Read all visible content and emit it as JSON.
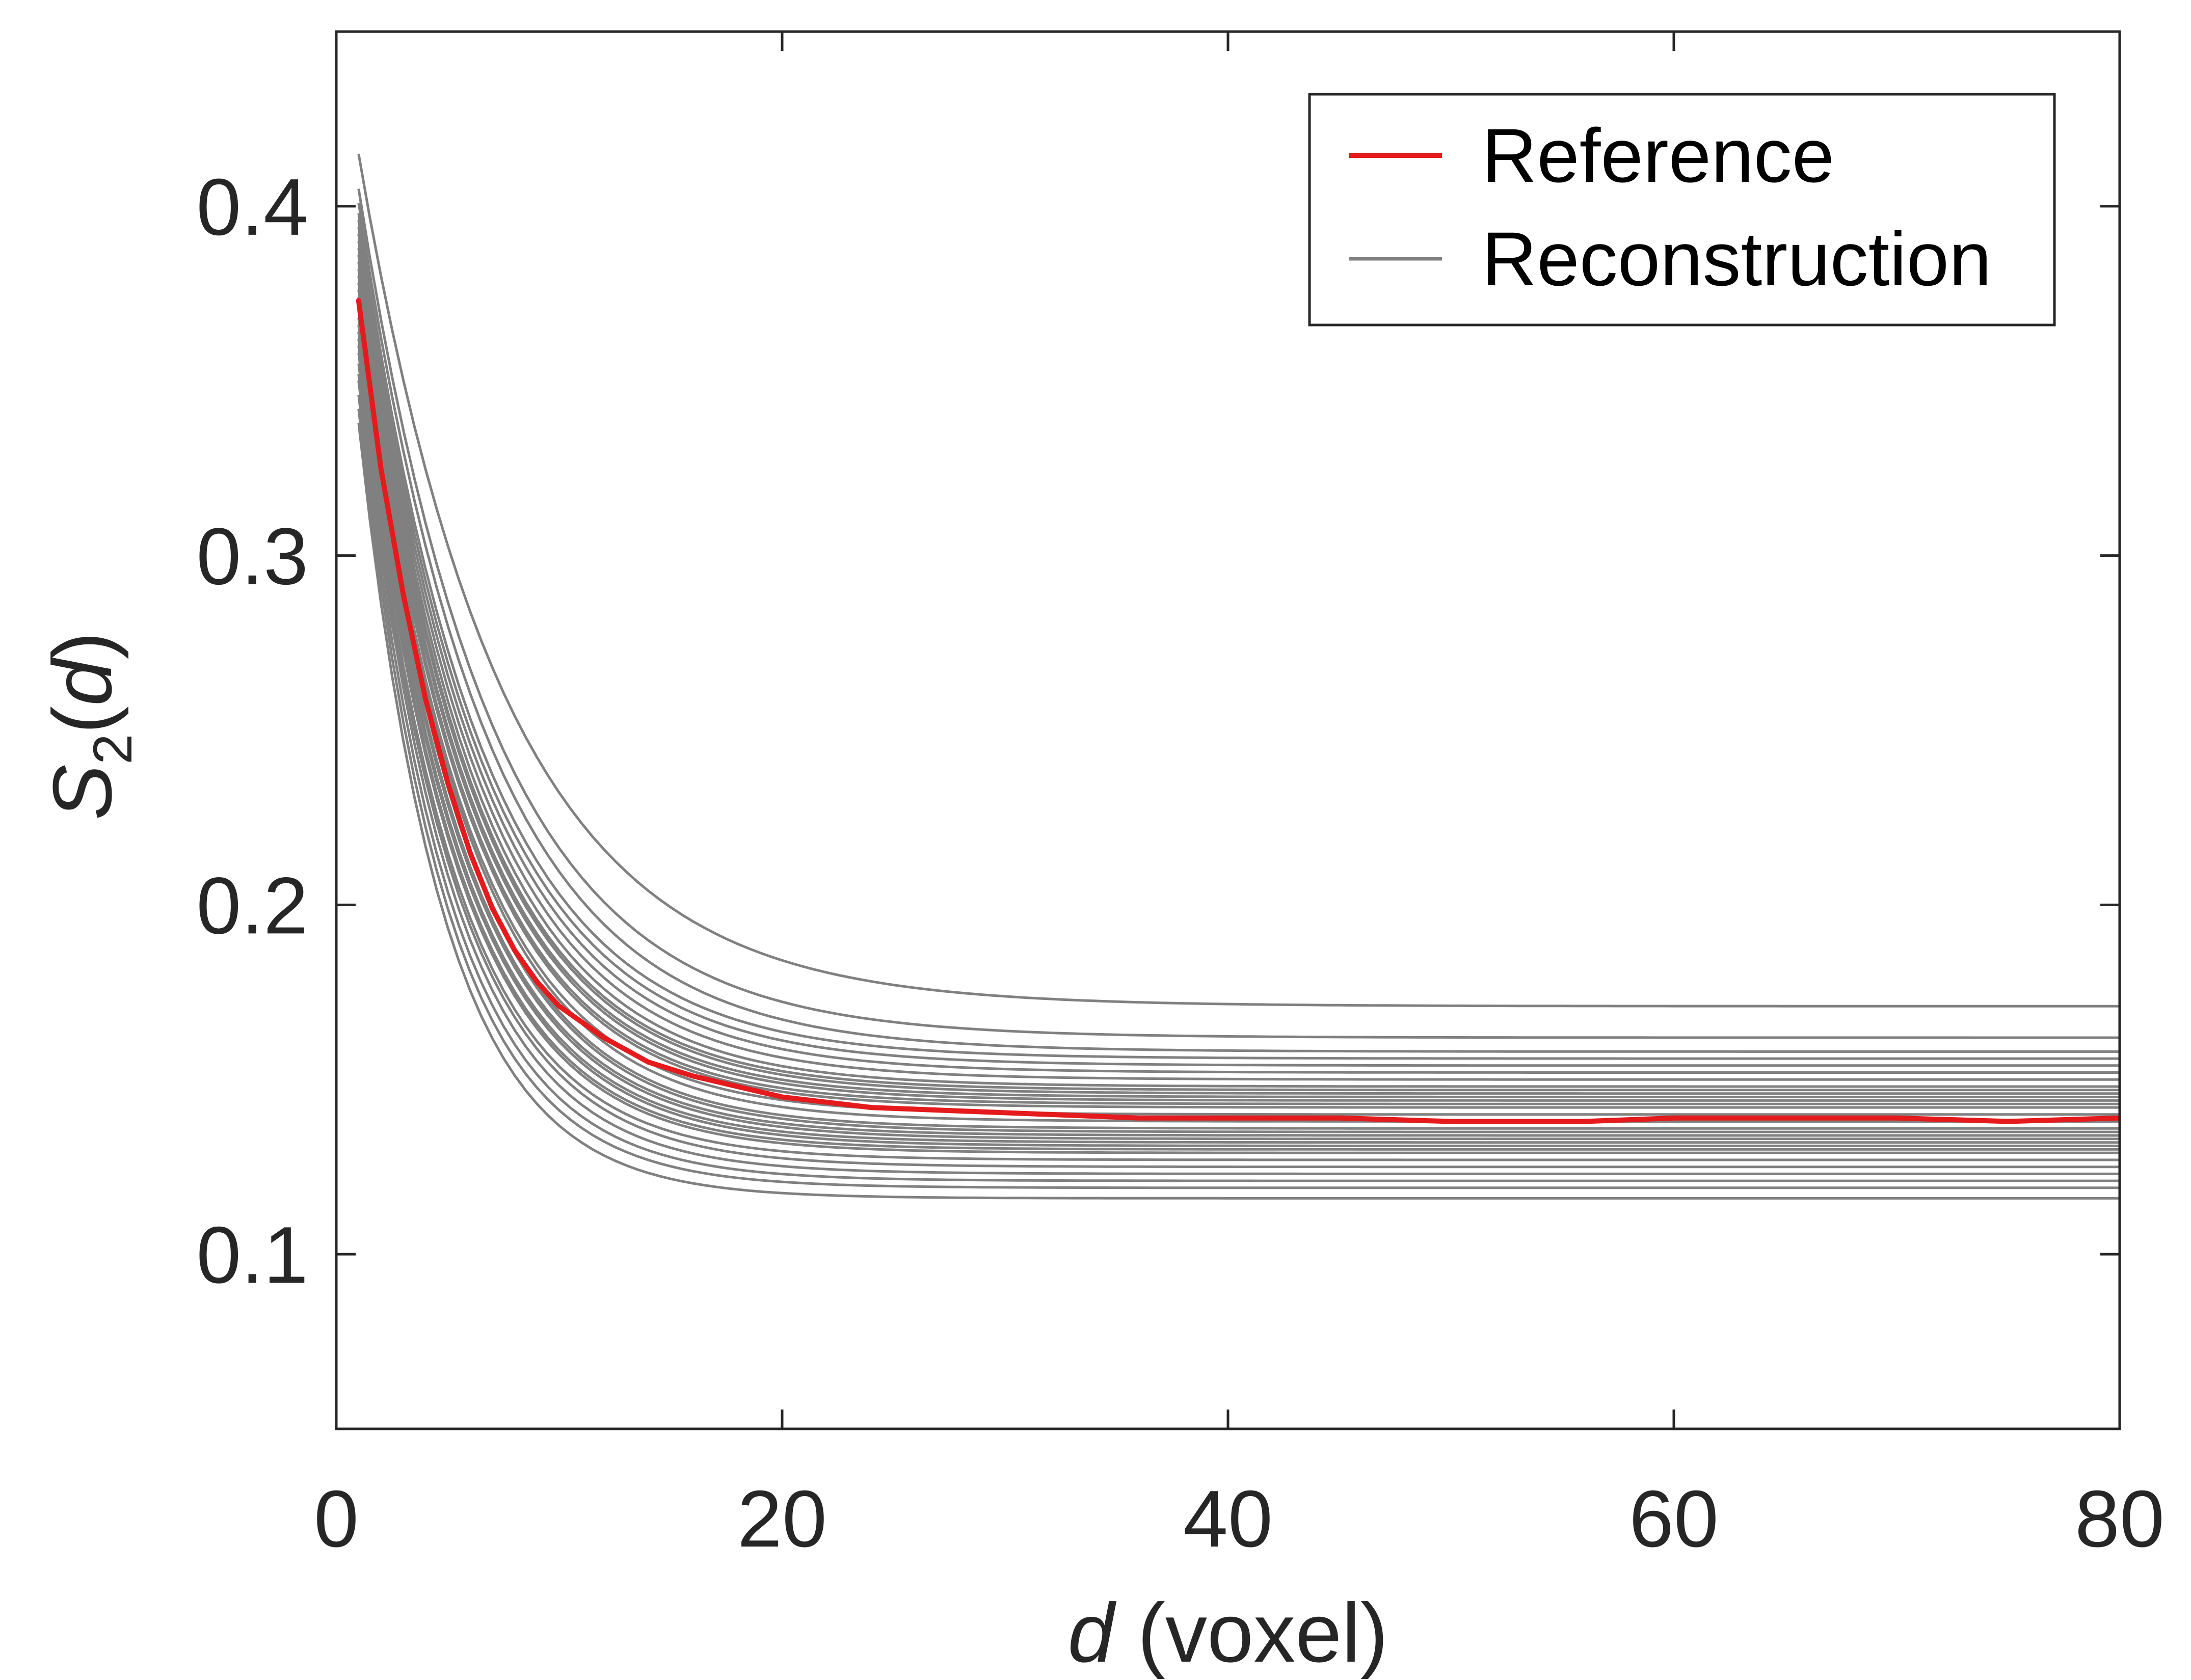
{
  "chart_data": {
    "type": "line",
    "xlabel": {
      "italic": "d",
      "rest": " (voxel)"
    },
    "ylabel": {
      "base": "S",
      "sub": "2",
      "open": "(",
      "italic": "d",
      "close": ")"
    },
    "xlim": [
      0,
      80
    ],
    "ylim": [
      0.05,
      0.45
    ],
    "xticks": [
      0,
      20,
      40,
      60,
      80
    ],
    "xtick_labels": [
      "0",
      "20",
      "40",
      "60",
      "80"
    ],
    "yticks": [
      0.1,
      0.2,
      0.3,
      0.4
    ],
    "ytick_labels": [
      "0.1",
      "0.2",
      "0.3",
      "0.4"
    ],
    "grid": false,
    "legend_position": "top-right",
    "legend": [
      {
        "label": "Reference",
        "color": "#e41a1c"
      },
      {
        "label": "Reconstruction",
        "color": "#808080"
      }
    ],
    "reference": {
      "name": "Reference",
      "color": "#e41a1c",
      "x": [
        1,
        2,
        3,
        4,
        5,
        6,
        7,
        8,
        9,
        10,
        12,
        14,
        16,
        18,
        20,
        24,
        28,
        32,
        36,
        40,
        45,
        50,
        53,
        56,
        60,
        65,
        70,
        75,
        80
      ],
      "y": [
        0.373,
        0.325,
        0.289,
        0.259,
        0.235,
        0.215,
        0.199,
        0.187,
        0.178,
        0.171,
        0.162,
        0.155,
        0.151,
        0.148,
        0.145,
        0.142,
        0.141,
        0.14,
        0.139,
        0.139,
        0.139,
        0.138,
        0.138,
        0.138,
        0.139,
        0.139,
        0.139,
        0.138,
        0.139
      ]
    },
    "reconstruction": {
      "name": "Reconstruction",
      "color": "#808080",
      "model": "y = plateau + (start - plateau) * exp(-(d - 1) / decay)",
      "x_range": [
        1,
        80
      ],
      "series": [
        {
          "start": 0.415,
          "plateau": 0.171,
          "decay": 6.5
        },
        {
          "start": 0.405,
          "plateau": 0.162,
          "decay": 6.0
        },
        {
          "start": 0.401,
          "plateau": 0.158,
          "decay": 5.8
        },
        {
          "start": 0.398,
          "plateau": 0.156,
          "decay": 5.5
        },
        {
          "start": 0.396,
          "plateau": 0.154,
          "decay": 5.4
        },
        {
          "start": 0.394,
          "plateau": 0.152,
          "decay": 5.3
        },
        {
          "start": 0.392,
          "plateau": 0.15,
          "decay": 5.2
        },
        {
          "start": 0.39,
          "plateau": 0.148,
          "decay": 5.1
        },
        {
          "start": 0.388,
          "plateau": 0.147,
          "decay": 5.0
        },
        {
          "start": 0.386,
          "plateau": 0.146,
          "decay": 5.0
        },
        {
          "start": 0.384,
          "plateau": 0.145,
          "decay": 4.9
        },
        {
          "start": 0.382,
          "plateau": 0.144,
          "decay": 4.9
        },
        {
          "start": 0.38,
          "plateau": 0.143,
          "decay": 4.8
        },
        {
          "start": 0.378,
          "plateau": 0.142,
          "decay": 4.8
        },
        {
          "start": 0.376,
          "plateau": 0.14,
          "decay": 4.7
        },
        {
          "start": 0.374,
          "plateau": 0.138,
          "decay": 4.7
        },
        {
          "start": 0.372,
          "plateau": 0.136,
          "decay": 4.6
        },
        {
          "start": 0.37,
          "plateau": 0.135,
          "decay": 4.6
        },
        {
          "start": 0.368,
          "plateau": 0.134,
          "decay": 4.5
        },
        {
          "start": 0.366,
          "plateau": 0.133,
          "decay": 4.5
        },
        {
          "start": 0.364,
          "plateau": 0.132,
          "decay": 4.4
        },
        {
          "start": 0.362,
          "plateau": 0.131,
          "decay": 4.4
        },
        {
          "start": 0.36,
          "plateau": 0.13,
          "decay": 4.3
        },
        {
          "start": 0.358,
          "plateau": 0.129,
          "decay": 4.3
        },
        {
          "start": 0.355,
          "plateau": 0.127,
          "decay": 4.2
        },
        {
          "start": 0.352,
          "plateau": 0.125,
          "decay": 4.2
        },
        {
          "start": 0.35,
          "plateau": 0.123,
          "decay": 4.1
        },
        {
          "start": 0.346,
          "plateau": 0.121,
          "decay": 4.0
        },
        {
          "start": 0.342,
          "plateau": 0.119,
          "decay": 3.9
        },
        {
          "start": 0.338,
          "plateau": 0.116,
          "decay": 3.8
        }
      ]
    }
  }
}
